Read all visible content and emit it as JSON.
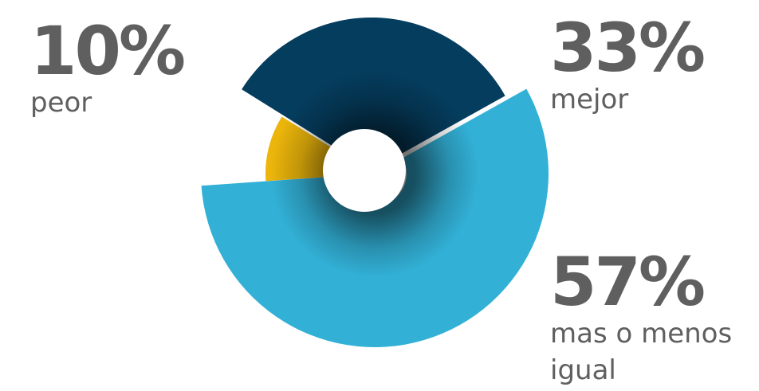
{
  "chart_data": {
    "type": "pie",
    "labels": [
      "mejor",
      "mas o menos igual",
      "peor"
    ],
    "values": [
      33,
      57,
      10
    ],
    "value_labels": [
      "33%",
      "57%",
      "10%"
    ],
    "colors": [
      "#053d5e",
      "#32b0d6",
      "#ebb50b"
    ],
    "donut": true,
    "exploded_slice": "mas o menos igual"
  }
}
